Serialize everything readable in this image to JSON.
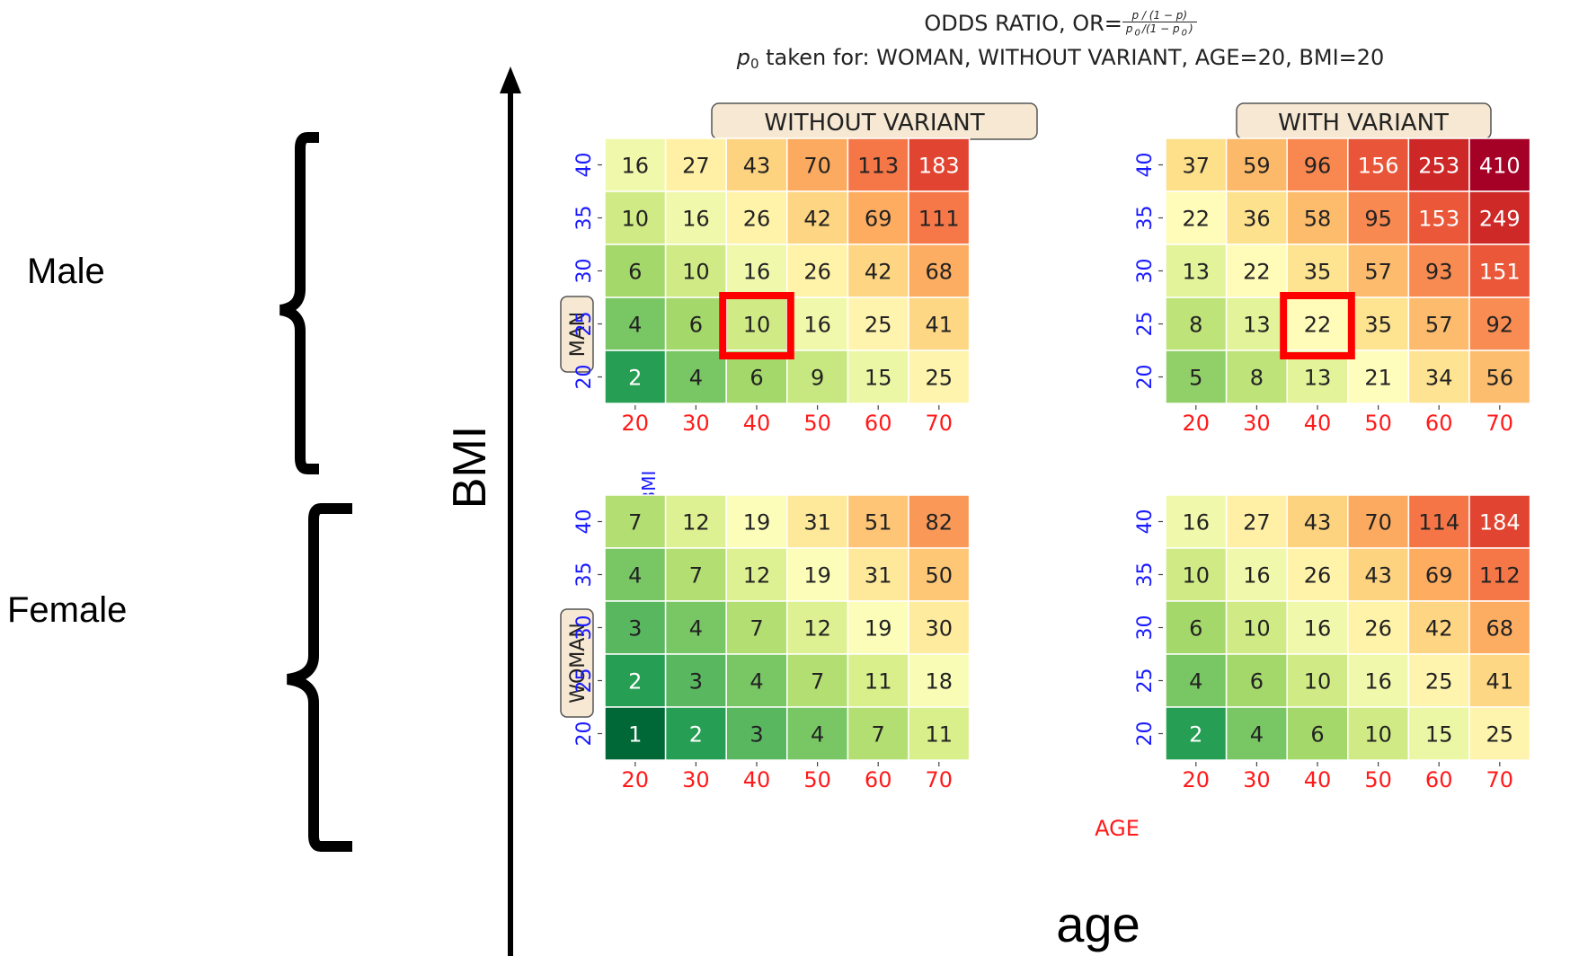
{
  "colors": {
    "bmi_tick": "#1a1aff",
    "age_tick": "#ff1a1a",
    "box_fill": "#f6e8d2",
    "highlight": "#ff0000",
    "cmap": "RdYlGn_r"
  },
  "title": {
    "line1_prefix": "ODDS RATIO, OR=",
    "frac_num": "p / (1 − p)",
    "frac_den_a": "p",
    "frac_den_sub1": "0",
    "frac_den_b": "/(1 − p",
    "frac_den_sub2": "0",
    "frac_den_c": ")",
    "line2_p": "p",
    "line2_sub": "0",
    "line2_rest": " taken for: WOMAN, WITHOUT VARIANT, AGE=20, BMI=20"
  },
  "labels": {
    "male": "Male",
    "female": "Female",
    "bmi_big": "BMI",
    "age_big": "age",
    "man_box": "MAN",
    "woman_box": "WOMAN",
    "bmi_small": "BMI",
    "age_small": "AGE"
  },
  "chart_data": {
    "type": "heatmap",
    "title": "ODDS RATIO, OR=(p/(1−p))/(p0/(1−p0)); p0 taken for: WOMAN, WITHOUT VARIANT, AGE=20, BMI=20",
    "xlabel": "AGE",
    "ylabel": "BMI",
    "x_ticks": [
      "20",
      "30",
      "40",
      "50",
      "60",
      "70"
    ],
    "y_ticks": [
      "40",
      "35",
      "30",
      "25",
      "20"
    ],
    "colormap": "RdYlGn_r",
    "value_range": [
      1,
      410
    ],
    "panels": [
      {
        "id": "man-without",
        "column_label": "WITHOUT VARIANT",
        "row_label": "MAN",
        "values": [
          [
            16,
            27,
            43,
            70,
            113,
            183
          ],
          [
            10,
            16,
            26,
            42,
            69,
            111
          ],
          [
            6,
            10,
            16,
            26,
            42,
            68
          ],
          [
            4,
            6,
            10,
            16,
            25,
            41
          ],
          [
            2,
            4,
            6,
            9,
            15,
            25
          ]
        ],
        "highlight": {
          "age": "40",
          "bmi": "25"
        }
      },
      {
        "id": "man-with",
        "column_label": "WITH VARIANT",
        "row_label": "MAN",
        "values": [
          [
            37,
            59,
            96,
            156,
            253,
            410
          ],
          [
            22,
            36,
            58,
            95,
            153,
            249
          ],
          [
            13,
            22,
            35,
            57,
            93,
            151
          ],
          [
            8,
            13,
            22,
            35,
            57,
            92
          ],
          [
            5,
            8,
            13,
            21,
            34,
            56
          ]
        ],
        "highlight": {
          "age": "40",
          "bmi": "25"
        }
      },
      {
        "id": "woman-without",
        "column_label": "WITHOUT VARIANT",
        "row_label": "WOMAN",
        "values": [
          [
            7,
            12,
            19,
            31,
            51,
            82
          ],
          [
            4,
            7,
            12,
            19,
            31,
            50
          ],
          [
            3,
            4,
            7,
            12,
            19,
            30
          ],
          [
            2,
            3,
            4,
            7,
            11,
            18
          ],
          [
            1,
            2,
            3,
            4,
            7,
            11
          ]
        ]
      },
      {
        "id": "woman-with",
        "column_label": "WITH VARIANT",
        "row_label": "WOMAN",
        "values": [
          [
            16,
            27,
            43,
            70,
            114,
            184
          ],
          [
            10,
            16,
            26,
            43,
            69,
            112
          ],
          [
            6,
            10,
            16,
            26,
            42,
            68
          ],
          [
            4,
            6,
            10,
            16,
            25,
            41
          ],
          [
            2,
            4,
            6,
            10,
            15,
            25
          ]
        ]
      }
    ]
  }
}
